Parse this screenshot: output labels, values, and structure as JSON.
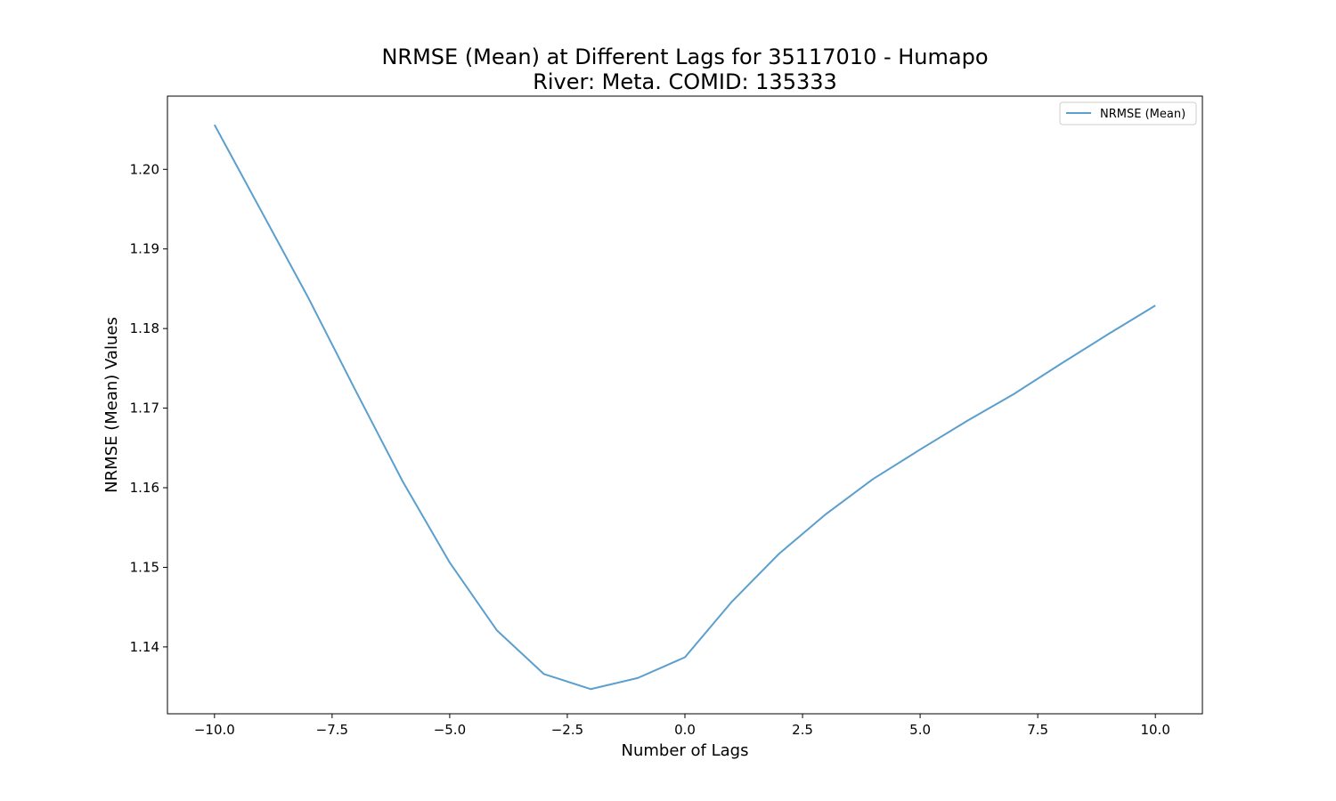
{
  "chart_data": {
    "type": "line",
    "title_lines": [
      "NRMSE (Mean) at Different Lags for 35117010 - Humapo",
      "River: Meta. COMID: 135333"
    ],
    "xlabel": "Number of Lags",
    "ylabel": "NRMSE (Mean) Values",
    "xlim": [
      -11,
      11
    ],
    "ylim": [
      1.1316,
      1.2092
    ],
    "x_ticks": [
      -10.0,
      -7.5,
      -5.0,
      -2.5,
      0.0,
      2.5,
      5.0,
      7.5,
      10.0
    ],
    "x_tick_labels": [
      "−10.0",
      "−7.5",
      "−5.0",
      "−2.5",
      "0.0",
      "2.5",
      "5.0",
      "7.5",
      "10.0"
    ],
    "y_ticks": [
      1.14,
      1.15,
      1.16,
      1.17,
      1.18,
      1.19,
      1.2
    ],
    "y_tick_labels": [
      "1.14",
      "1.15",
      "1.16",
      "1.17",
      "1.18",
      "1.19",
      "1.20"
    ],
    "grid": false,
    "legend_position": "top-right",
    "series": [
      {
        "name": "NRMSE (Mean)",
        "color": "#5b9fce",
        "x": [
          -10,
          -9,
          -8,
          -7,
          -6,
          -5,
          -4,
          -3,
          -2,
          -1,
          0,
          1,
          2,
          3,
          4,
          5,
          6,
          7,
          8,
          9,
          10
        ],
        "y": [
          1.2056,
          1.1947,
          1.1838,
          1.1722,
          1.1608,
          1.1506,
          1.1421,
          1.1366,
          1.1347,
          1.1361,
          1.1387,
          1.1457,
          1.1517,
          1.1567,
          1.1611,
          1.1648,
          1.1684,
          1.1718,
          1.1756,
          1.1793,
          1.1829
        ]
      }
    ]
  }
}
